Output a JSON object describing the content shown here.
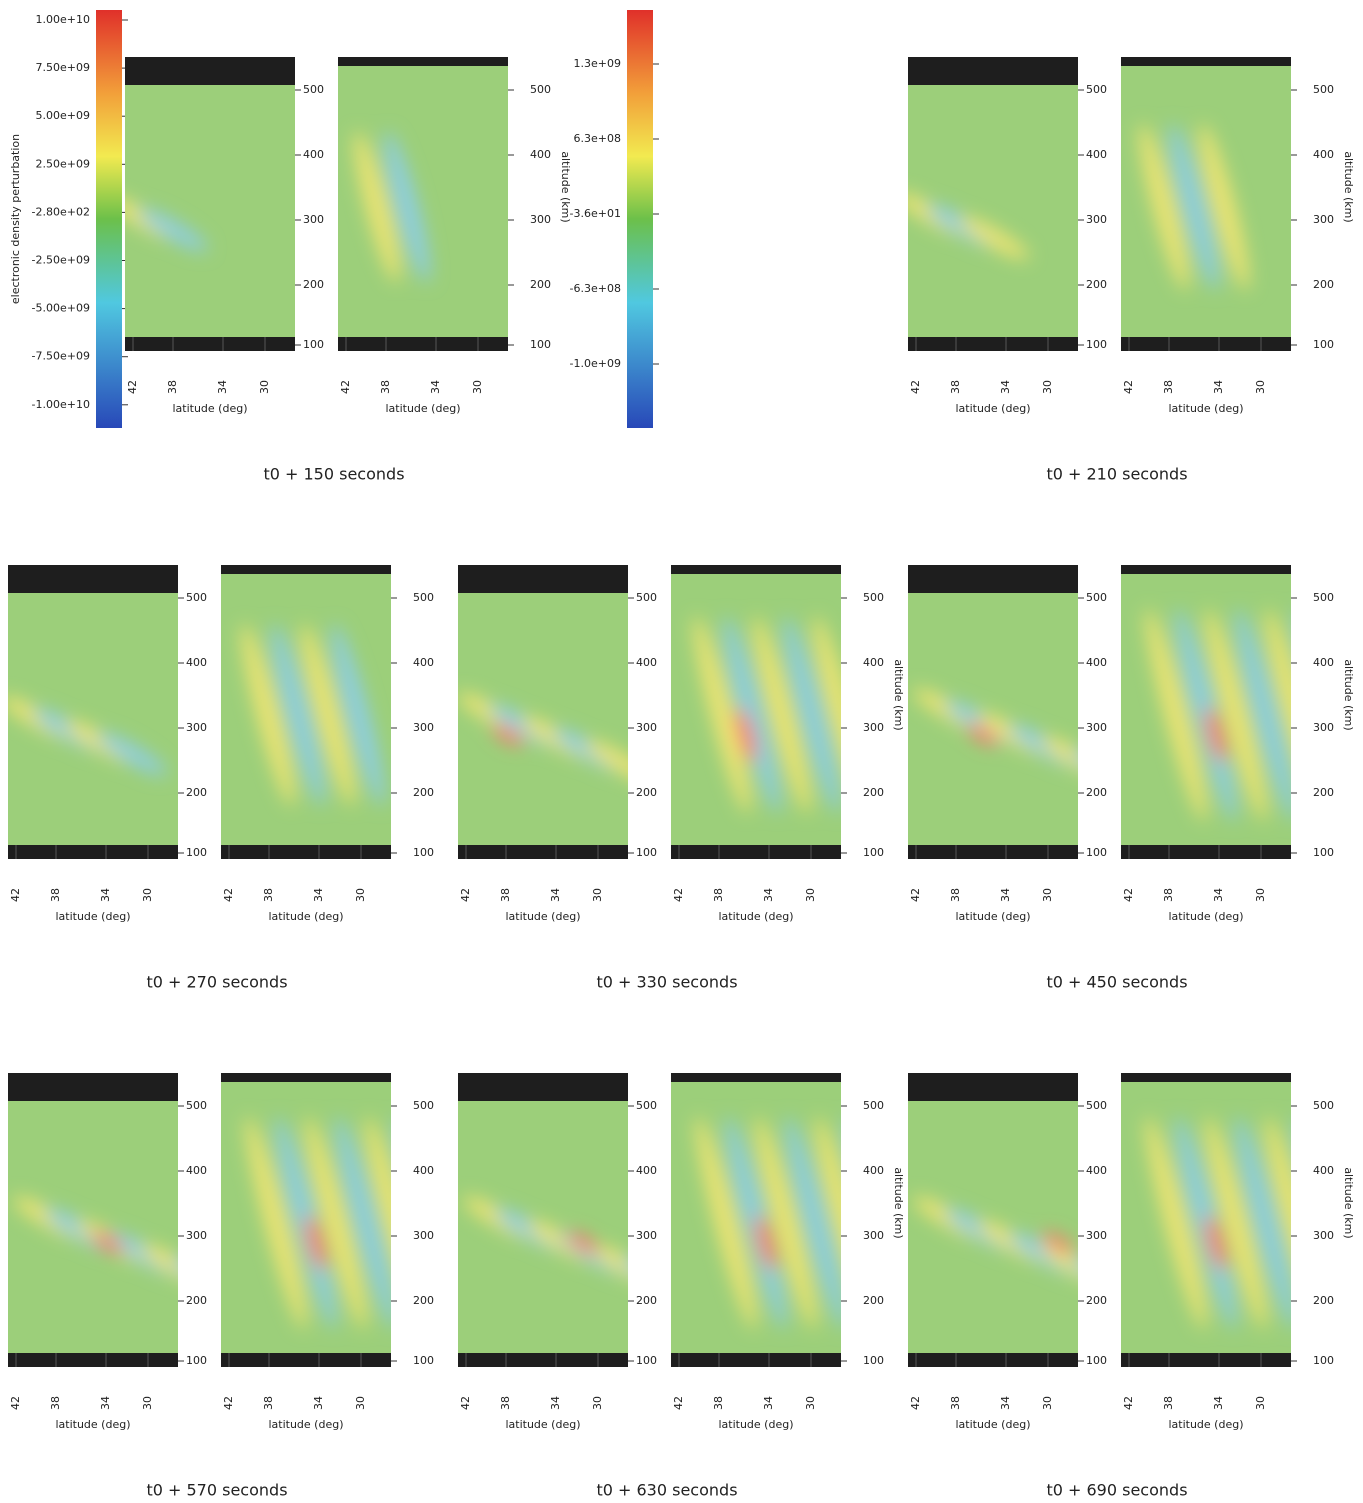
{
  "colorbar_left": {
    "label": "electronic density perturbation",
    "ticks": [
      "1.00e+10",
      "7.50e+09",
      "5.00e+09",
      "2.50e+09",
      "-2.80e+02",
      "-2.50e+09",
      "-5.00e+09",
      "-7.50e+09",
      "-1.00e+10"
    ]
  },
  "colorbar_right": {
    "ticks": [
      "1.3e+09",
      "6.3e+08",
      "-3.6e+01",
      "-6.3e+08",
      "-1.0e+09"
    ]
  },
  "altitude_ticks": [
    "500",
    "400",
    "300",
    "200",
    "100"
  ],
  "latitude_ticks": [
    "42",
    "38",
    "34",
    "30"
  ],
  "latitude_label": "latitude (deg)",
  "panels": [
    {
      "caption": "t0 + 150 seconds",
      "altitude_label": "altitude (km)"
    },
    {
      "caption": "t0 + 210 seconds",
      "altitude_label": "altitude (km)"
    },
    {
      "caption": "t0 + 270 seconds"
    },
    {
      "caption": "t0 + 330 seconds",
      "altitude_label": "altitude (km)"
    },
    {
      "caption": "t0 + 450 seconds",
      "altitude_label": "altitude (km)"
    },
    {
      "caption": "t0 + 570 seconds"
    },
    {
      "caption": "t0 + 630 seconds",
      "altitude_label": "altitude (km)"
    },
    {
      "caption": "t0 + 690 seconds",
      "altitude_label": "altitude (km)"
    }
  ]
}
